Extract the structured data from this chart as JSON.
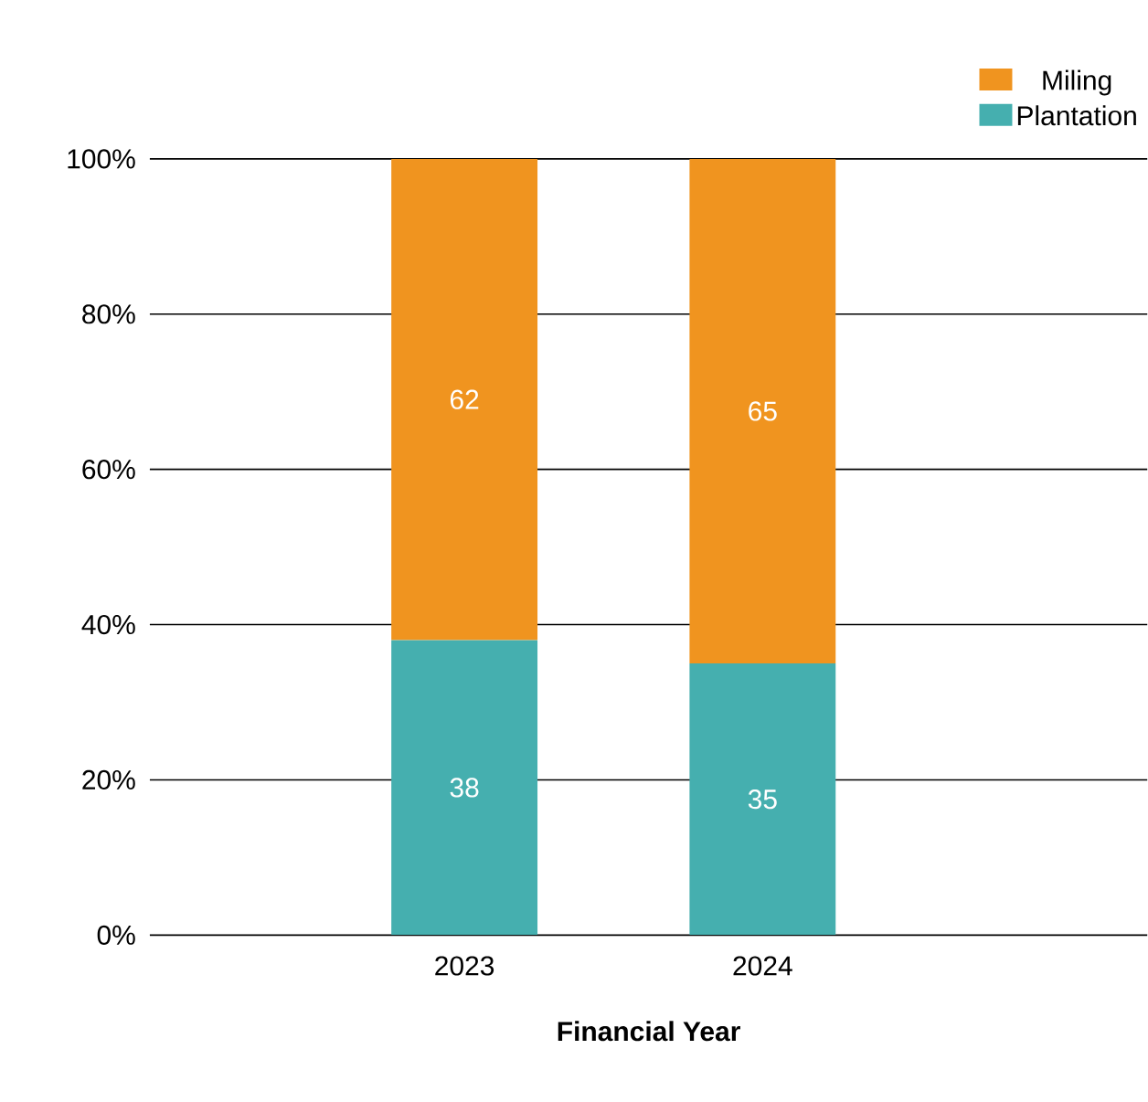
{
  "chart_data": {
    "type": "bar",
    "stacked": true,
    "xlabel": "Financial Year",
    "categories": [
      "2023",
      "2024"
    ],
    "series": [
      {
        "name": "Plantation",
        "color": "#45afaf",
        "values": [
          38,
          35
        ]
      },
      {
        "name": "Miling",
        "color": "#f0941f",
        "values": [
          62,
          65
        ]
      }
    ],
    "ylim": [
      0,
      100
    ],
    "yticks": [
      {
        "value": 0,
        "label": "0%"
      },
      {
        "value": 20,
        "label": "20%"
      },
      {
        "value": 40,
        "label": "40%"
      },
      {
        "value": 60,
        "label": "60%"
      },
      {
        "value": 80,
        "label": "80%"
      },
      {
        "value": 100,
        "label": "100%"
      }
    ],
    "grid": "y",
    "legend": "top right",
    "data_labels": true
  }
}
